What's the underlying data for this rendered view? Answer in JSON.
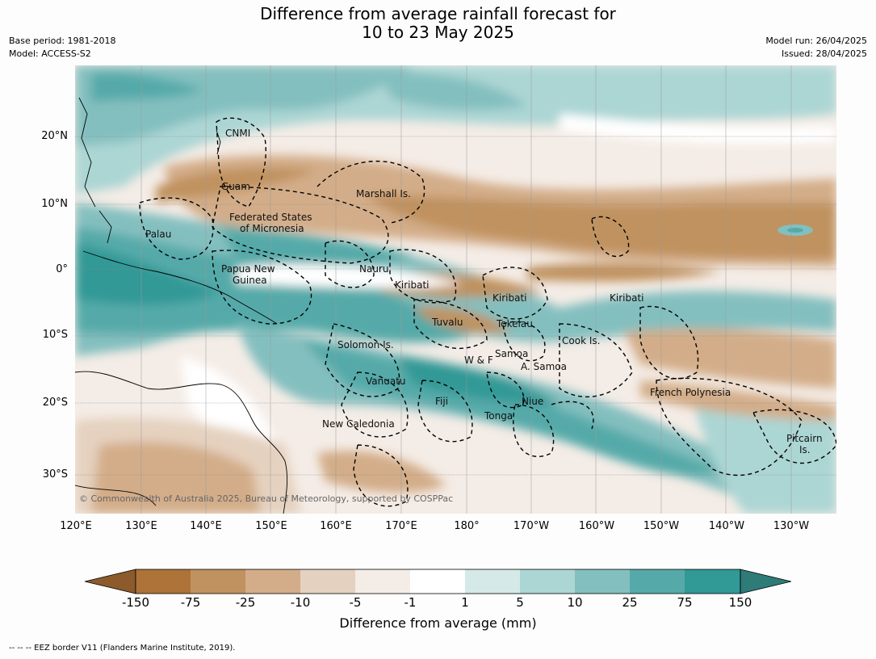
{
  "header": {
    "title_line1": "Difference from average rainfall forecast for",
    "title_line2": "10 to 23 May 2025",
    "base_period": "Base period: 1981-2018",
    "model": "Model: ACCESS-S2",
    "model_run": "Model run: 26/04/2025",
    "issued": "Issued: 28/04/2025"
  },
  "map": {
    "lat_labels": [
      "20°N",
      "10°N",
      "0°",
      "10°S",
      "20°S",
      "30°S"
    ],
    "lon_labels": [
      "120°E",
      "130°E",
      "140°E",
      "150°E",
      "160°E",
      "170°E",
      "180°",
      "170°W",
      "160°W",
      "150°W",
      "140°W",
      "130°W"
    ],
    "regions": {
      "cnmi": "CNMI",
      "guam": "Guam",
      "marshall": "Marshall Is.",
      "fsm_line1": "Federated States",
      "fsm_line2": "of Micronesia",
      "palau": "Palau",
      "png_line1": "Papua New",
      "png_line2": "Guinea",
      "nauru": "Nauru",
      "kiribati_west": "Kiribati",
      "kiribati_central": "Kiribati",
      "kiribati_east": "Kiribati",
      "tuvalu": "Tuvalu",
      "tokelau": "Tokelau",
      "solomon": "Solomon Is.",
      "cook": "Cook Is.",
      "samoa": "Samoa",
      "wallis_futuna": "W & F",
      "american_samoa": "A. Samoa",
      "vanuatu": "Vanuatu",
      "fiji": "Fiji",
      "niue": "Niue",
      "tonga": "Tonga",
      "new_caledonia": "New Caledonia",
      "french_polynesia": "French Polynesia",
      "pitcairn_line1": "Pitcairn",
      "pitcairn_line2": "Is."
    },
    "copyright": "© Commonwealth of Australia 2025, Bureau of Meteorology, supported by COSPPac"
  },
  "colorbar": {
    "ticks": [
      "-150",
      "-75",
      "-25",
      "-10",
      "-5",
      "-1",
      "1",
      "5",
      "10",
      "25",
      "75",
      "150"
    ],
    "colors": [
      "#8c5a2b",
      "#ad7339",
      "#c0925f",
      "#d3ad89",
      "#e5d1bf",
      "#f4ece6",
      "#ffffff",
      "#d4e9e8",
      "#acd6d4",
      "#84bfbf",
      "#55aaa9",
      "#319996",
      "#2e7b78"
    ],
    "title": "Difference from average (mm)"
  },
  "footer": {
    "legend_text": "--  --  -- EEZ border V11 (Flanders Marine Institute, 2019)."
  }
}
